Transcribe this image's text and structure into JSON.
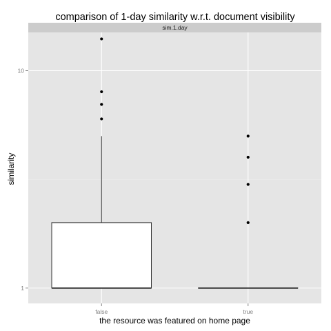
{
  "chart_data": {
    "type": "boxplot",
    "title": "comparison of 1-day similarity w.r.t. document visibility",
    "xlabel": "the resource was featured on home page",
    "ylabel": "similarity",
    "facet_label": "sim.1.day",
    "y_scale": "log10",
    "ylim": [
      0.85,
      15
    ],
    "y_ticks": [
      1,
      10
    ],
    "y_tick_labels": [
      "1",
      "10"
    ],
    "grid": true,
    "categories": [
      "false",
      "true"
    ],
    "boxes": [
      {
        "category": "false",
        "min": 1,
        "q1": 1,
        "median": 1,
        "q3": 2,
        "whisker_high": 5,
        "outliers": [
          6,
          7,
          8,
          14
        ]
      },
      {
        "category": "true",
        "min": 1,
        "q1": 1,
        "median": 1,
        "q3": 1,
        "whisker_high": 1,
        "outliers": [
          2,
          3,
          4,
          5
        ]
      }
    ],
    "colors": {
      "panel_bg": "#e5e5e5",
      "strip_bg": "#cccccc",
      "grid_major": "#ffffff",
      "grid_minor": "#f2f2f2",
      "box_fill": "#ffffff",
      "box_line": "#333333",
      "point": "#000000"
    }
  }
}
